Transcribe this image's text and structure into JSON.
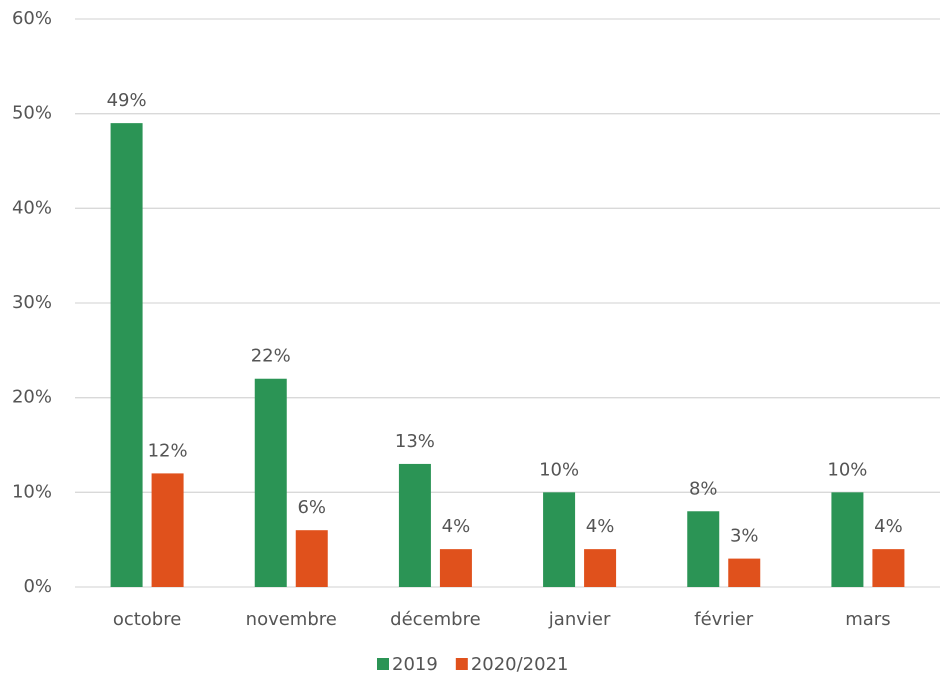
{
  "chart_data": {
    "type": "bar",
    "categories": [
      "octobre",
      "novembre",
      "décembre",
      "janvier",
      "février",
      "mars"
    ],
    "series": [
      {
        "name": "2019",
        "color": "#2b9455",
        "values": [
          49,
          22,
          13,
          10,
          8,
          10
        ],
        "value_labels": [
          "49%",
          "22%",
          "13%",
          "10%",
          "8%",
          "10%"
        ]
      },
      {
        "name": "2020/2021",
        "color": "#e0511c",
        "values": [
          12,
          6,
          4,
          4,
          3,
          4
        ],
        "value_labels": [
          "12%",
          "6%",
          "4%",
          "4%",
          "3%",
          "4%"
        ]
      }
    ],
    "ylim": [
      0,
      60
    ],
    "yticks": [
      {
        "value": 0,
        "label": "0%"
      },
      {
        "value": 10,
        "label": "10%"
      },
      {
        "value": 20,
        "label": "20%"
      },
      {
        "value": 30,
        "label": "30%"
      },
      {
        "value": 40,
        "label": "40%"
      },
      {
        "value": 50,
        "label": "50%"
      },
      {
        "value": 60,
        "label": "60%"
      }
    ],
    "grid": true,
    "legend": "bottom"
  }
}
